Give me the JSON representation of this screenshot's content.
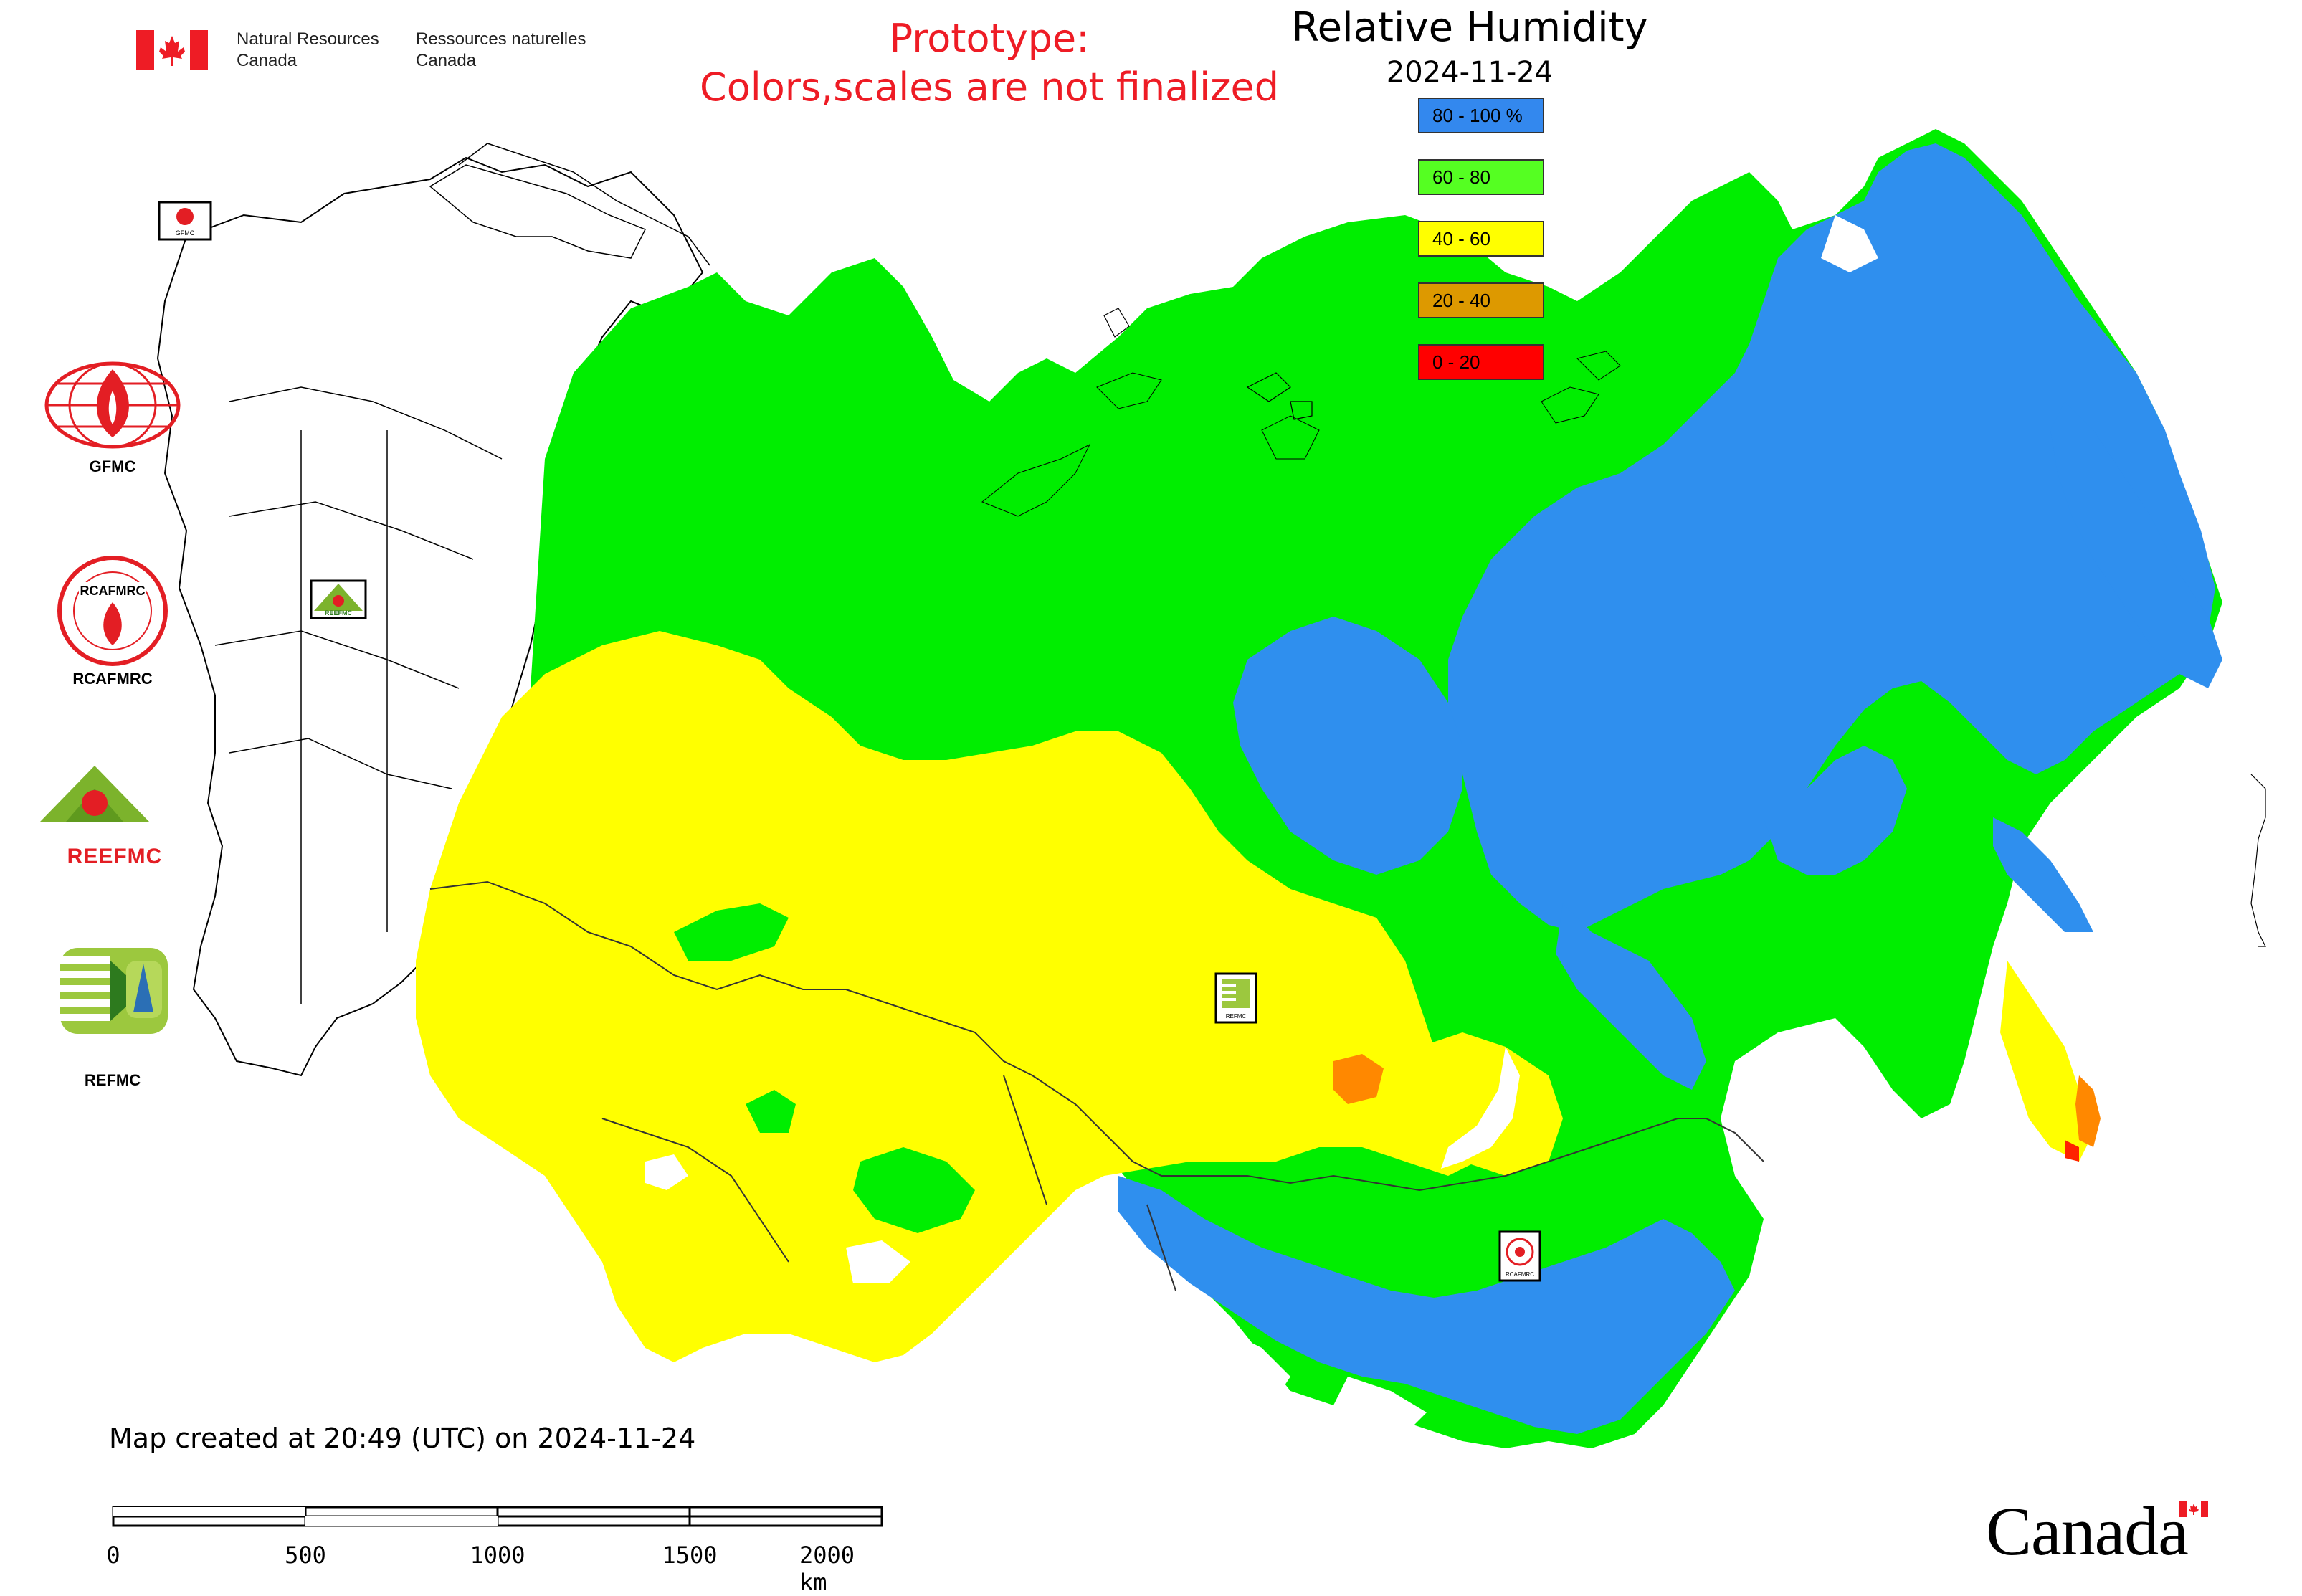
{
  "header": {
    "agency_en_line1": "Natural Resources",
    "agency_en_line2": "Canada",
    "agency_fr_line1": "Ressources naturelles",
    "agency_fr_line2": "Canada",
    "prototype_line1": "Prototype:",
    "prototype_line2": "Colors,scales are not finalized"
  },
  "legend": {
    "title": "Relative Humidity",
    "date": "2024-11-24",
    "items": [
      {
        "label": "80 - 100 %",
        "color": "#3388ee"
      },
      {
        "label": "60 - 80",
        "color": "#55ff22"
      },
      {
        "label": "40 - 60",
        "color": "#ffff00"
      },
      {
        "label": "20 - 40",
        "color": "#dd9900"
      },
      {
        "label": "0 - 20",
        "color": "#ff0000"
      }
    ]
  },
  "logos": {
    "gfmc": "GFMC",
    "rcafmrc": "RCAFMRC",
    "reefmc": "REEFMC",
    "refmc": "REFMC",
    "rcafmrc_ring": "RCAFMRC",
    "reefmc_word": "REEFMC"
  },
  "map_markers": [
    {
      "name": "GFMC"
    },
    {
      "name": "REEFMC"
    },
    {
      "name": "REFMC"
    },
    {
      "name": "RCAFMRC"
    }
  ],
  "footer": {
    "created": "Map created at 20:49 (UTC) on 2024-11-24",
    "scale_labels": [
      "0",
      "500",
      "1000",
      "1500",
      "2000 km"
    ],
    "wordmark": "Canada"
  },
  "colors": {
    "humid_80_100": "#3388ee",
    "humid_60_80": "#00ff00",
    "humid_40_60": "#ffff00",
    "humid_20_40": "#ff8800",
    "humid_0_20": "#ff0000",
    "brand_red": "#ee1c25"
  }
}
